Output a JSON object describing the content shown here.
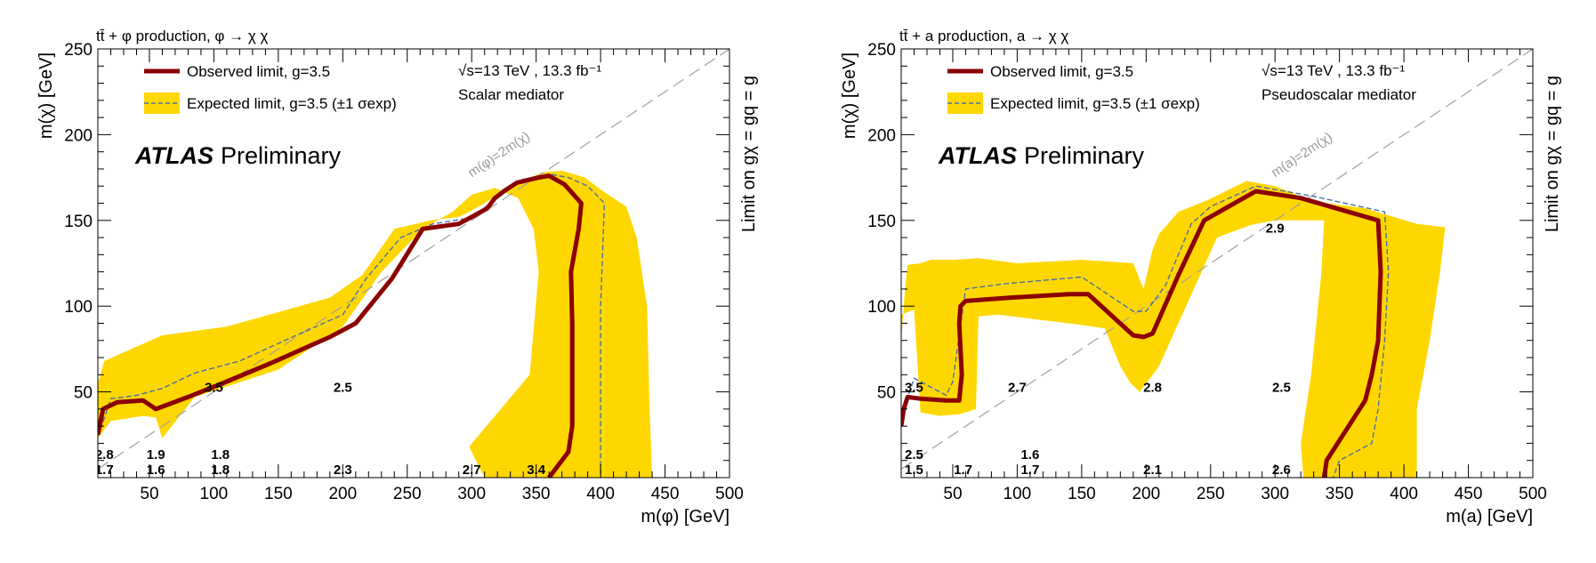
{
  "chart_data": [
    {
      "type": "line",
      "title": "tt̄ + φ production, φ → χ χ",
      "xlabel": "m(φ) [GeV]",
      "ylabel": "m(χ) [GeV]",
      "zlabel": "Limit on gχ = gq = g",
      "xlim": [
        10,
        500
      ],
      "ylim": [
        0,
        250
      ],
      "xticks": [
        50,
        100,
        150,
        200,
        250,
        300,
        350,
        400,
        450,
        500
      ],
      "yticks": [
        50,
        100,
        150,
        200,
        250
      ],
      "grid": false,
      "legend_position": "top-left",
      "legend": [
        "Observed limit, g=3.5",
        "Expected limit, g=3.5 (±1 σexp)"
      ],
      "info": [
        "√s=13 TeV , 13.3 fb⁻¹",
        "Scalar mediator"
      ],
      "atlas_label": "ATLAS",
      "atlas_sub": "Preliminary",
      "diagonal_label": "m(φ)=2m(χ)",
      "series": [
        {
          "name": "Observed limit, g=3.5",
          "color": "#8b0000",
          "x": [
            10,
            14,
            25,
            45,
            55,
            80,
            110,
            145,
            190,
            210,
            238,
            262,
            290,
            300,
            312,
            318,
            325,
            335,
            352,
            360,
            372,
            385,
            383,
            377,
            378,
            378,
            378,
            375,
            360
          ],
          "y": [
            25,
            40,
            44,
            45,
            40,
            47,
            56,
            67,
            82,
            90,
            116,
            145,
            148,
            152,
            157,
            163,
            167,
            172,
            175,
            176,
            171,
            160,
            145,
            120,
            90,
            60,
            30,
            15,
            0
          ]
        },
        {
          "name": "Expected limit, g=3.5 (±1 σexp)",
          "color": "#4a6fa5",
          "x": [
            12,
            20,
            40,
            60,
            85,
            120,
            155,
            200,
            218,
            245,
            270,
            295,
            308,
            318,
            326,
            340,
            360,
            375,
            390,
            403,
            402,
            400,
            400,
            400,
            400
          ],
          "y": [
            28,
            46,
            48,
            52,
            61,
            68,
            80,
            95,
            116,
            140,
            148,
            151,
            156,
            163,
            168,
            174,
            177,
            175,
            170,
            160,
            140,
            100,
            60,
            20,
            0
          ]
        }
      ],
      "band": {
        "upper_x": [
          10,
          15,
          60,
          110,
          190,
          215,
          240,
          268,
          290,
          298,
          310,
          330,
          355,
          370,
          388,
          400,
          420,
          428,
          436,
          438,
          440
        ],
        "upper_y": [
          55,
          68,
          83,
          88,
          105,
          118,
          145,
          150,
          152,
          155,
          160,
          170,
          178,
          179,
          175,
          168,
          158,
          140,
          100,
          40,
          0
        ],
        "lower_x": [
          440,
          310,
          298,
          345,
          352,
          348,
          336,
          318,
          300,
          285,
          262,
          230,
          200,
          150,
          85,
          60,
          55,
          45,
          20,
          10
        ],
        "lower_y": [
          0,
          0,
          18,
          60,
          120,
          145,
          163,
          169,
          165,
          155,
          145,
          120,
          88,
          63,
          47,
          23,
          35,
          36,
          33,
          23
        ]
      },
      "point_labels": [
        {
          "x": 100,
          "y": 50,
          "text": "3.5"
        },
        {
          "x": 200,
          "y": 50,
          "text": "2.5"
        },
        {
          "x": 15,
          "y": 11,
          "text": "2.8"
        },
        {
          "x": 15,
          "y": 2,
          "text": "1.7"
        },
        {
          "x": 55,
          "y": 11,
          "text": "1.9"
        },
        {
          "x": 55,
          "y": 2,
          "text": "1.6"
        },
        {
          "x": 105,
          "y": 11,
          "text": "1.8"
        },
        {
          "x": 105,
          "y": 2,
          "text": "1.8"
        },
        {
          "x": 200,
          "y": 2,
          "text": "2.3"
        },
        {
          "x": 300,
          "y": 2,
          "text": "2.7"
        },
        {
          "x": 350,
          "y": 2,
          "text": "3.4"
        }
      ]
    },
    {
      "type": "line",
      "title": "tt̄ + a production, a → χ χ",
      "xlabel": "m(a) [GeV]",
      "ylabel": "m(χ) [GeV]",
      "zlabel": "Limit on gχ = gq = g",
      "xlim": [
        10,
        500
      ],
      "ylim": [
        0,
        250
      ],
      "xticks": [
        50,
        100,
        150,
        200,
        250,
        300,
        350,
        400,
        450,
        500
      ],
      "yticks": [
        50,
        100,
        150,
        200,
        250
      ],
      "grid": false,
      "legend_position": "top-left",
      "legend": [
        "Observed limit, g=3.5",
        "Expected limit, g=3.5 (±1 σexp)"
      ],
      "info": [
        "√s=13 TeV , 13.3 fb⁻¹",
        "Pseudoscalar mediator"
      ],
      "atlas_label": "ATLAS",
      "atlas_sub": "Preliminary",
      "diagonal_label": "m(a)=2m(χ)",
      "series": [
        {
          "name": "Observed limit, g=3.5",
          "color": "#8b0000",
          "x": [
            10,
            12,
            15,
            25,
            45,
            55,
            57,
            55,
            56,
            60,
            95,
            140,
            155,
            190,
            198,
            205,
            225,
            245,
            285,
            320,
            380,
            382,
            380,
            375,
            370,
            340,
            338
          ],
          "y": [
            30,
            40,
            47,
            46,
            45,
            45,
            60,
            90,
            100,
            103,
            105,
            107,
            107,
            83,
            82,
            84,
            118,
            150,
            167,
            163,
            150,
            120,
            80,
            60,
            45,
            10,
            0
          ]
        },
        {
          "name": "Expected limit, g=3.5 (±1 σexp)",
          "color": "#4a6fa5",
          "x": [
            12,
            20,
            45,
            50,
            60,
            90,
            150,
            190,
            200,
            215,
            235,
            250,
            285,
            330,
            385,
            388,
            385,
            380,
            375,
            350,
            345
          ],
          "y": [
            40,
            58,
            48,
            56,
            110,
            113,
            117,
            97,
            97,
            112,
            148,
            158,
            170,
            164,
            155,
            120,
            80,
            40,
            20,
            10,
            0
          ]
        }
      ],
      "band": {
        "upper_x": [
          10,
          13,
          15,
          25,
          33,
          50,
          70,
          100,
          150,
          190,
          198,
          205,
          210,
          225,
          248,
          278,
          300,
          330,
          370,
          410,
          432,
          428,
          420,
          410,
          410,
          390,
          340
        ],
        "upper_y": [
          80,
          110,
          124,
          125,
          127,
          127,
          128,
          125,
          127,
          125,
          110,
          133,
          142,
          155,
          162,
          173,
          170,
          161,
          157,
          148,
          146,
          120,
          80,
          40,
          0,
          0,
          0
        ],
        "lower_x": [
          322,
          320,
          328,
          336,
          338,
          328,
          300,
          285,
          280,
          255,
          210,
          195,
          188,
          180,
          168,
          150,
          85,
          70,
          68,
          55,
          40,
          25,
          20,
          10
        ],
        "lower_y": [
          0,
          20,
          60,
          120,
          150,
          150,
          150,
          148,
          147,
          140,
          65,
          50,
          55,
          65,
          87,
          89,
          95,
          94,
          40,
          37,
          36,
          38,
          98,
          95
        ]
      },
      "point_labels": [
        {
          "x": 2.9,
          "y": 143,
          "text": "2.9",
          "px": 300
        },
        {
          "x": 20,
          "y": 50,
          "text": "3.5"
        },
        {
          "x": 100,
          "y": 50,
          "text": "2.7"
        },
        {
          "x": 205,
          "y": 50,
          "text": "2.8"
        },
        {
          "x": 305,
          "y": 50,
          "text": "2.5"
        },
        {
          "x": 20,
          "y": 11,
          "text": "2.5"
        },
        {
          "x": 20,
          "y": 2,
          "text": "1.5"
        },
        {
          "x": 58,
          "y": 2,
          "text": "1.7"
        },
        {
          "x": 110,
          "y": 11,
          "text": "1.6"
        },
        {
          "x": 110,
          "y": 2,
          "text": "1.7"
        },
        {
          "x": 205,
          "y": 2,
          "text": "2.1"
        },
        {
          "x": 305,
          "y": 2,
          "text": "2.6"
        }
      ]
    }
  ],
  "colors": {
    "band": "#ffd700",
    "observed": "#8b0000",
    "expected": "#4a6fa5",
    "diagonal": "#a0a0a0"
  }
}
